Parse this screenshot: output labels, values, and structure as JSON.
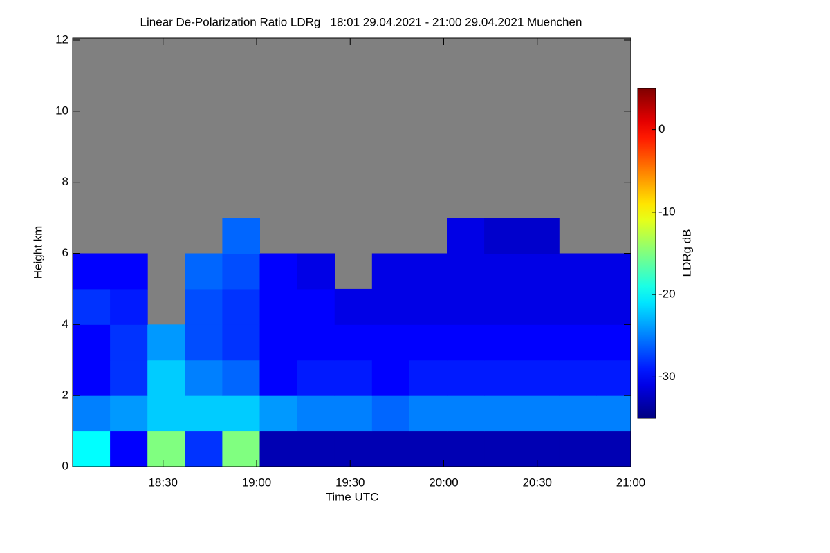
{
  "chart_data": {
    "type": "heatmap",
    "title": "Linear De-Polarization Ratio LDRg   18:01 29.04.2021 - 21:00 29.04.2021 Muenchen",
    "x_label": "Time UTC",
    "y_label": "Height km",
    "colorbar_label": "LDRg dB",
    "xlim": [
      1081,
      1260
    ],
    "xticks": [
      {
        "value": 1110,
        "label": "18:30"
      },
      {
        "value": 1140,
        "label": "19:00"
      },
      {
        "value": 1170,
        "label": "19:30"
      },
      {
        "value": 1200,
        "label": "20:00"
      },
      {
        "value": 1230,
        "label": "20:30"
      },
      {
        "value": 1260,
        "label": "21:00"
      }
    ],
    "ylim": [
      0,
      12
    ],
    "yticks": [
      0,
      2,
      4,
      6,
      8,
      10,
      12
    ],
    "zlim": [
      -35,
      5
    ],
    "zticks": [
      0,
      -10,
      -20,
      -30
    ],
    "x_edges": [
      1081,
      1093,
      1105,
      1117,
      1129,
      1141,
      1153,
      1165,
      1177,
      1189,
      1201,
      1213,
      1225,
      1237,
      1249,
      1260
    ],
    "y_edges": [
      0,
      1,
      2,
      3,
      4,
      5,
      6,
      7,
      8,
      9,
      10,
      11,
      12
    ],
    "z": [
      [
        -20,
        -30,
        -15,
        -28,
        -15,
        -33,
        -33,
        -33,
        -33,
        -33,
        -33,
        -33,
        -33,
        -33,
        -33
      ],
      [
        -25,
        -24,
        -22,
        -22,
        -22,
        -24,
        -25,
        -25,
        -26,
        -25,
        -25,
        -25,
        -25,
        -25,
        -25
      ],
      [
        -30,
        -28,
        -22,
        -25,
        -26,
        -30,
        -29,
        -29,
        -30,
        -29,
        -29,
        -29,
        -29,
        -29,
        -29
      ],
      [
        -30,
        -28,
        -24,
        -27,
        -28,
        -30,
        -30,
        -30,
        -30,
        -30,
        -30,
        -30,
        -30,
        -30,
        -30
      ],
      [
        -28,
        -29,
        null,
        -27,
        -28,
        -30,
        -30,
        -31,
        -31,
        -31,
        -31,
        -31,
        -31,
        -31,
        -31
      ],
      [
        -30,
        -30,
        null,
        -26,
        -27,
        -30,
        -31,
        null,
        -31,
        -31,
        -31,
        -31,
        -31,
        -31,
        -31
      ],
      [
        null,
        null,
        null,
        null,
        -26,
        null,
        null,
        null,
        null,
        null,
        -31,
        -32,
        -32,
        null,
        null
      ],
      [
        null,
        null,
        null,
        null,
        null,
        null,
        null,
        null,
        null,
        null,
        null,
        null,
        null,
        null,
        null
      ],
      [
        null,
        null,
        null,
        null,
        null,
        null,
        null,
        null,
        null,
        null,
        null,
        null,
        null,
        null,
        null
      ],
      [
        null,
        null,
        null,
        null,
        null,
        null,
        null,
        null,
        null,
        null,
        null,
        null,
        null,
        null,
        null
      ],
      [
        null,
        null,
        null,
        null,
        null,
        null,
        null,
        null,
        null,
        null,
        null,
        null,
        null,
        null,
        null
      ],
      [
        null,
        null,
        null,
        null,
        null,
        null,
        null,
        null,
        null,
        null,
        null,
        null,
        null,
        null,
        null
      ]
    ],
    "missing_color": "#808080"
  }
}
